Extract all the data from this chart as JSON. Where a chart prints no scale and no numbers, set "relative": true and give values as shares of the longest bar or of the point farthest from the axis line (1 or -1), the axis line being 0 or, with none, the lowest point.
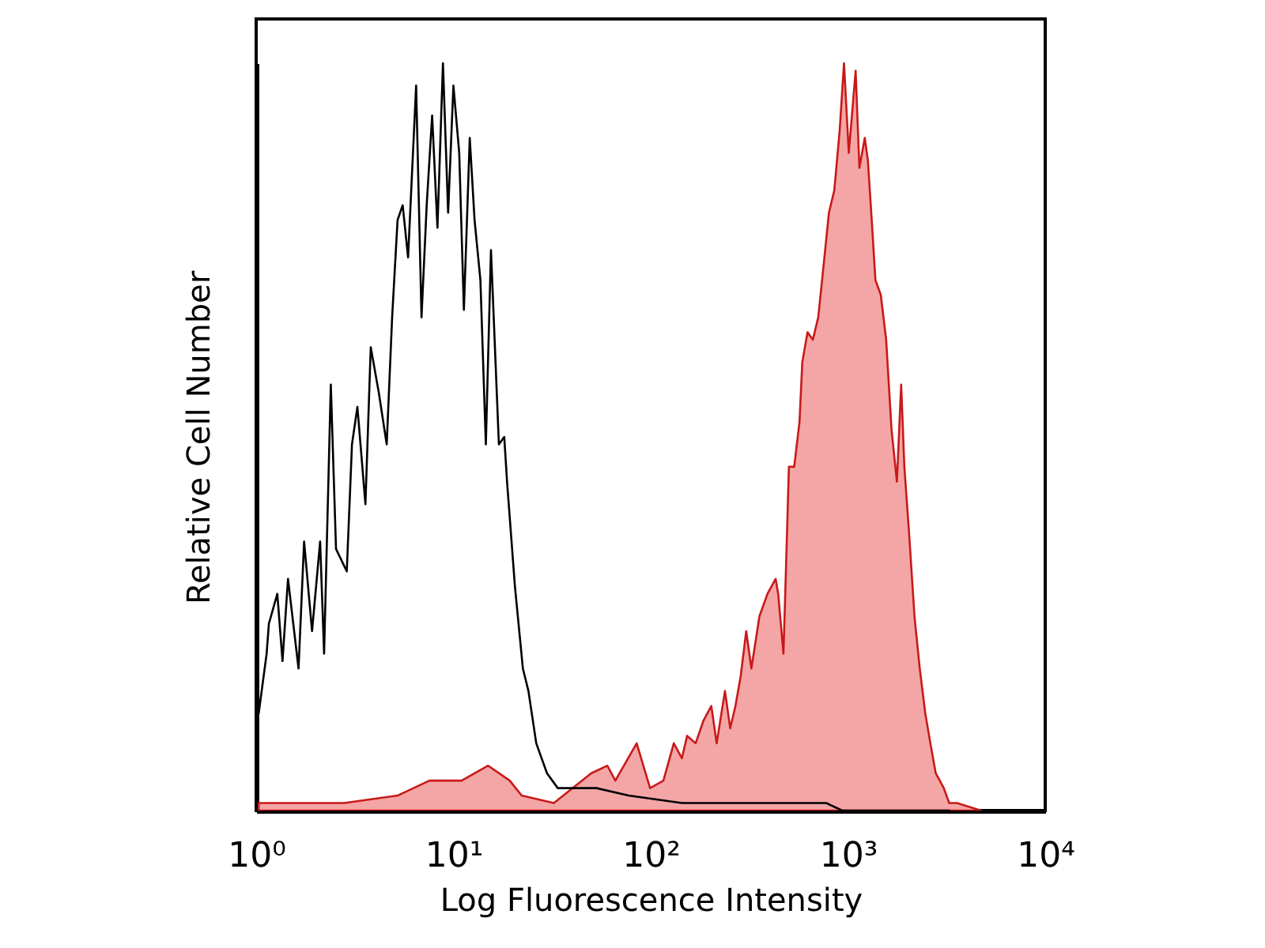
{
  "chart_data": {
    "type": "area",
    "xlabel": "Log Fluorescence Intensity",
    "ylabel": "Relative Cell Number",
    "log": "x",
    "relative": true,
    "xlim": [
      1,
      10000
    ],
    "xticks": [
      {
        "value": 1,
        "label": "10⁰"
      },
      {
        "value": 10,
        "label": "10¹"
      },
      {
        "value": 100,
        "label": "10²"
      },
      {
        "value": 1000,
        "label": "10³"
      },
      {
        "value": 10000,
        "label": "10⁴"
      }
    ],
    "series": [
      {
        "color": "#f4a6a6",
        "x": [
          1.03,
          1.69,
          2.79,
          5.21,
          7.56,
          11,
          15,
          19.3,
          22.2,
          32.3,
          50,
          60.3,
          66.2,
          84.9,
          99.3,
          116,
          131,
          144,
          153,
          169,
          185,
          203,
          216,
          238,
          253,
          269,
          286,
          305,
          324,
          356,
          391,
          430,
          443,
          471,
          486,
          502,
          534,
          568,
          587,
          624,
          664,
          707,
          753,
          801,
          853,
          908,
          955,
          1010,
          1094,
          1143,
          1217,
          1262,
          1320,
          1378,
          1467,
          1562,
          1663,
          1771,
          1861,
          1932,
          2043,
          2174,
          2313,
          2466,
          2618,
          2786,
          3062,
          3260,
          3575,
          4730
        ],
        "values": [
          0.01,
          0.01,
          0.01,
          0.02,
          0.04,
          0.04,
          0.06,
          0.04,
          0.02,
          0.01,
          0.05,
          0.06,
          0.04,
          0.09,
          0.03,
          0.04,
          0.09,
          0.07,
          0.1,
          0.09,
          0.12,
          0.14,
          0.09,
          0.16,
          0.11,
          0.14,
          0.18,
          0.24,
          0.19,
          0.26,
          0.29,
          0.31,
          0.29,
          0.21,
          0.33,
          0.46,
          0.46,
          0.52,
          0.6,
          0.64,
          0.63,
          0.66,
          0.73,
          0.8,
          0.83,
          0.91,
          1.0,
          0.88,
          0.99,
          0.86,
          0.9,
          0.87,
          0.79,
          0.71,
          0.69,
          0.63,
          0.51,
          0.44,
          0.57,
          0.46,
          0.37,
          0.26,
          0.19,
          0.13,
          0.09,
          0.05,
          0.03,
          0.01,
          0.01,
          0
        ]
      },
      {
        "type": "line",
        "color": "#000000",
        "x": [
          1.03,
          1.13,
          1.16,
          1.28,
          1.36,
          1.45,
          1.64,
          1.75,
          1.92,
          2.11,
          2.21,
          2.39,
          2.54,
          2.88,
          3.06,
          3.26,
          3.58,
          3.81,
          4.18,
          4.59,
          4.89,
          5.21,
          5.53,
          5.89,
          6.47,
          6.89,
          7.32,
          7.8,
          8.3,
          8.85,
          9.4,
          10,
          10.7,
          11.3,
          12.1,
          12.8,
          13.7,
          14.6,
          15.5,
          17,
          18.1,
          18.7,
          20.5,
          22.5,
          24,
          26.3,
          29.8,
          33.8,
          53.2,
          77.3,
          144,
          269,
          776,
          935,
          3260
        ],
        "values": [
          0.13,
          0.21,
          0.25,
          0.29,
          0.2,
          0.31,
          0.19,
          0.36,
          0.24,
          0.36,
          0.21,
          0.57,
          0.35,
          0.32,
          0.49,
          0.54,
          0.41,
          0.62,
          0.56,
          0.49,
          0.66,
          0.79,
          0.81,
          0.74,
          0.97,
          0.66,
          0.81,
          0.93,
          0.78,
          1.0,
          0.8,
          0.97,
          0.88,
          0.67,
          0.9,
          0.79,
          0.71,
          0.49,
          0.75,
          0.49,
          0.5,
          0.44,
          0.3,
          0.19,
          0.16,
          0.09,
          0.05,
          0.03,
          0.03,
          0.02,
          0.01,
          0.01,
          0.01,
          0,
          0
        ]
      }
    ]
  }
}
